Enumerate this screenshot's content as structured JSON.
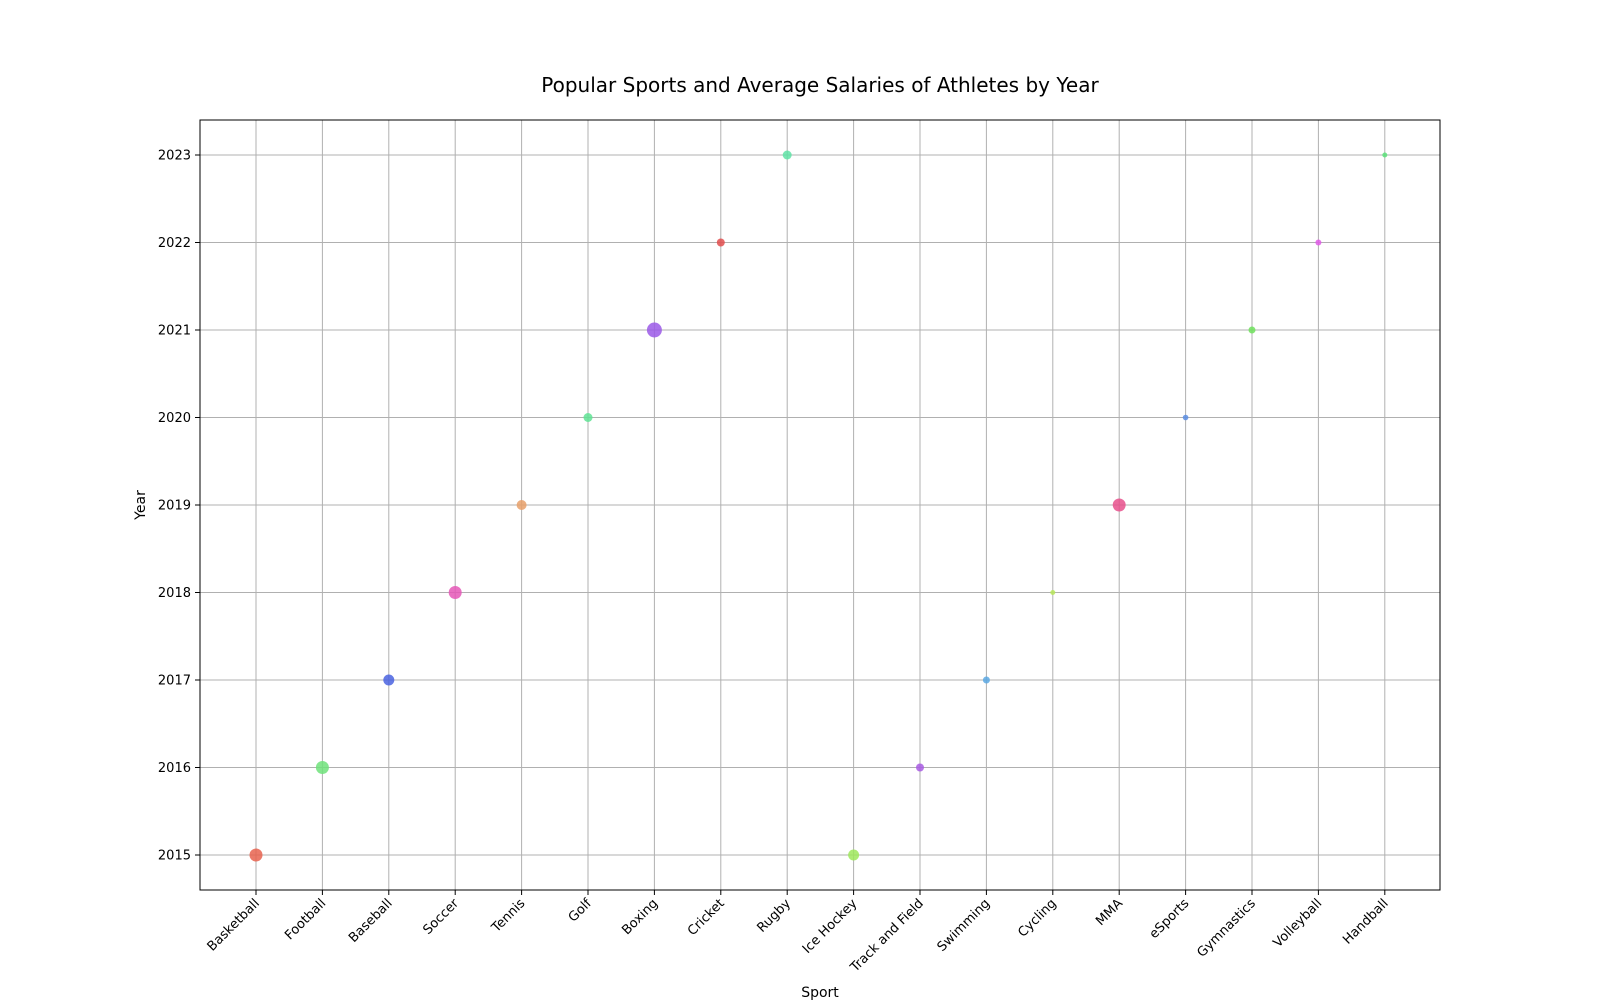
{
  "chart_data": {
    "type": "scatter",
    "title": "Popular Sports and Average Salaries of Athletes by Year",
    "xlabel": "Sport",
    "ylabel": "Year",
    "categories": [
      "Basketball",
      "Football",
      "Baseball",
      "Soccer",
      "Tennis",
      "Golf",
      "Boxing",
      "Cricket",
      "Rugby",
      "Ice Hockey",
      "Track and Field",
      "Swimming",
      "Cycling",
      "MMA",
      "eSports",
      "Gymnastics",
      "Volleyball",
      "Handball"
    ],
    "y_ticks": [
      2015,
      2016,
      2017,
      2018,
      2019,
      2020,
      2021,
      2022,
      2023
    ],
    "ylim": [
      2014.6,
      2023.4
    ],
    "grid": true,
    "points": [
      {
        "sport": "Basketball",
        "year": 2015,
        "size": 6.5,
        "color": "#e8634f"
      },
      {
        "sport": "Football",
        "year": 2016,
        "size": 6.5,
        "color": "#6fe27a"
      },
      {
        "sport": "Baseball",
        "year": 2017,
        "size": 5.5,
        "color": "#4a63e0"
      },
      {
        "sport": "Soccer",
        "year": 2018,
        "size": 6.5,
        "color": "#e557b7"
      },
      {
        "sport": "Tennis",
        "year": 2019,
        "size": 5,
        "color": "#e8a06a"
      },
      {
        "sport": "Golf",
        "year": 2020,
        "size": 4.5,
        "color": "#5fe394"
      },
      {
        "sport": "Boxing",
        "year": 2021,
        "size": 7.5,
        "color": "#9b59e8"
      },
      {
        "sport": "Cricket",
        "year": 2022,
        "size": 4,
        "color": "#e24d4d"
      },
      {
        "sport": "Rugby",
        "year": 2023,
        "size": 4.5,
        "color": "#5fe3a6"
      },
      {
        "sport": "Ice Hockey",
        "year": 2015,
        "size": 5.5,
        "color": "#9fe85c"
      },
      {
        "sport": "Track and Field",
        "year": 2016,
        "size": 4,
        "color": "#a85ae3"
      },
      {
        "sport": "Swimming",
        "year": 2017,
        "size": 3.5,
        "color": "#5aa8e3"
      },
      {
        "sport": "Cycling",
        "year": 2018,
        "size": 2.5,
        "color": "#b8e85c"
      },
      {
        "sport": "MMA",
        "year": 2019,
        "size": 6.5,
        "color": "#e8508c"
      },
      {
        "sport": "eSports",
        "year": 2020,
        "size": 2.8,
        "color": "#5a8de3"
      },
      {
        "sport": "Gymnastics",
        "year": 2021,
        "size": 3.5,
        "color": "#6ee25c"
      },
      {
        "sport": "Volleyball",
        "year": 2022,
        "size": 3,
        "color": "#e05ae8"
      },
      {
        "sport": "Handball",
        "year": 2023,
        "size": 2.5,
        "color": "#5ce27a"
      }
    ]
  }
}
